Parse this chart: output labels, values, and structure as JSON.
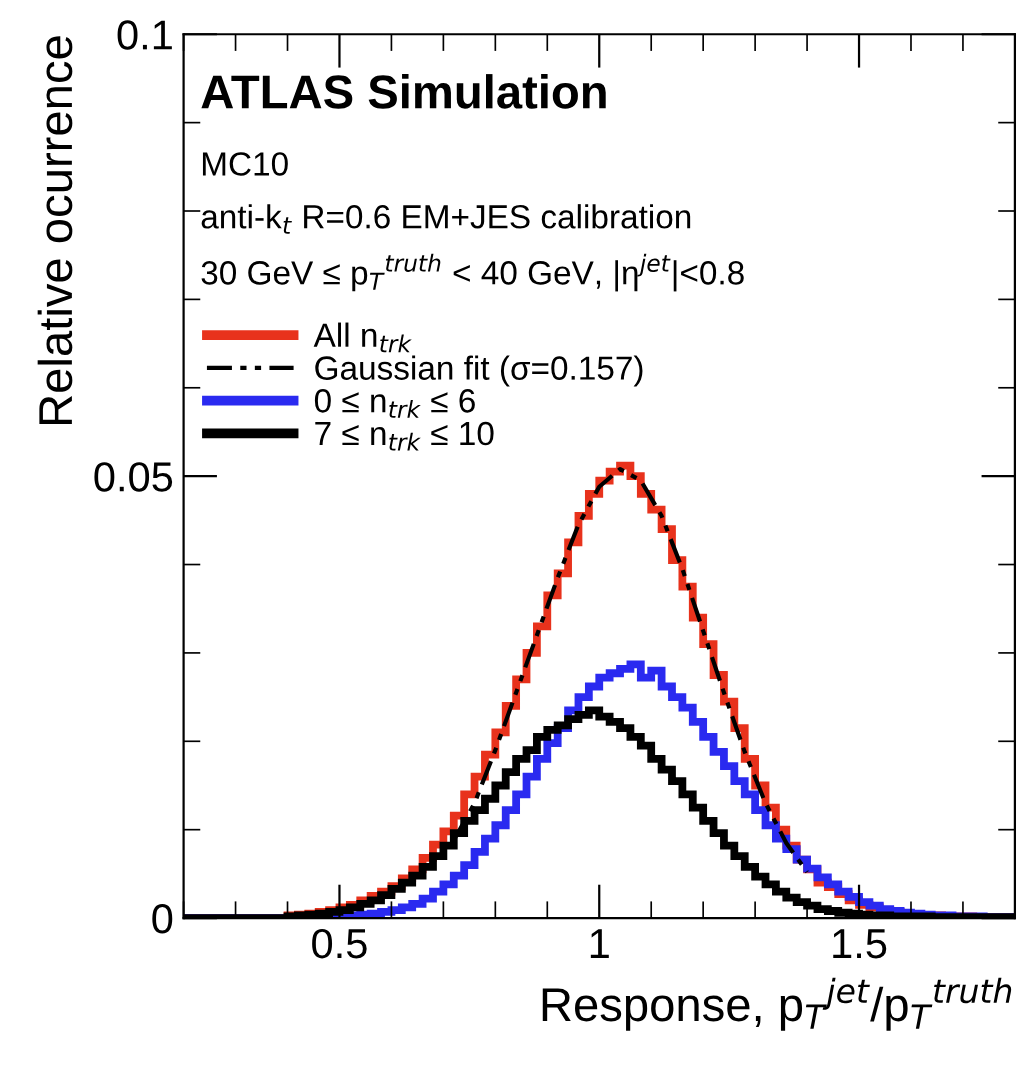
{
  "chart_data": {
    "type": "histogram",
    "xlabel": "Response, p$_{T}$$^{jet}$/p$_{T}$$^{truth}$",
    "ylabel": "Relative ocurrence",
    "annotations": [
      "ATLAS Simulation",
      "MC10",
      "anti-k$_{t}$ R=0.6 EM+JES calibration",
      "30 GeV ≤ p$_{T}$$^{truth}$ < 40 GeV, |η$^{jet}$|<0.8"
    ],
    "bins": [
      0.2,
      0.22,
      0.24,
      0.26,
      0.28,
      0.3,
      0.32,
      0.34,
      0.36,
      0.38,
      0.4,
      0.42,
      0.44,
      0.46,
      0.48,
      0.5,
      0.52,
      0.54,
      0.56,
      0.58,
      0.6,
      0.62,
      0.64,
      0.66,
      0.68,
      0.7,
      0.72,
      0.74,
      0.76,
      0.78,
      0.8,
      0.82,
      0.84,
      0.86,
      0.88,
      0.9,
      0.92,
      0.94,
      0.96,
      0.98,
      1.0,
      1.02,
      1.04,
      1.06,
      1.08,
      1.1,
      1.12,
      1.14,
      1.16,
      1.18,
      1.2,
      1.22,
      1.24,
      1.26,
      1.28,
      1.3,
      1.32,
      1.34,
      1.36,
      1.38,
      1.4,
      1.42,
      1.44,
      1.46,
      1.48,
      1.5,
      1.52,
      1.54,
      1.56,
      1.58,
      1.6,
      1.62,
      1.64,
      1.66,
      1.68,
      1.7,
      1.72,
      1.74,
      1.76,
      1.78,
      1.8
    ],
    "series": [
      {
        "name": "All n$_{trk}$",
        "color": "#e8321c",
        "values": [
          0,
          0,
          0,
          0,
          0,
          0,
          0,
          0,
          0,
          0,
          0.0003,
          0.0004,
          0.0005,
          0.0007,
          0.0009,
          0.0012,
          0.0015,
          0.002,
          0.0025,
          0.003,
          0.0036,
          0.0045,
          0.0055,
          0.0068,
          0.0083,
          0.0098,
          0.0116,
          0.014,
          0.016,
          0.0185,
          0.021,
          0.024,
          0.027,
          0.03,
          0.033,
          0.0365,
          0.039,
          0.0425,
          0.0455,
          0.048,
          0.0495,
          0.0505,
          0.0512,
          0.05,
          0.048,
          0.0462,
          0.044,
          0.0405,
          0.0375,
          0.034,
          0.031,
          0.0275,
          0.0245,
          0.0215,
          0.018,
          0.015,
          0.0125,
          0.01,
          0.0082,
          0.0066,
          0.0055,
          0.004,
          0.0035,
          0.0027,
          0.002,
          0.0015,
          0.0012,
          0.0009,
          0.0007,
          0.0005,
          0.0004,
          0.0003,
          0.0003,
          0.0002,
          0.0002,
          0.0002,
          0.0001,
          0.0001,
          0.0001,
          0.0001
        ]
      },
      {
        "name": "Gaussian fit (σ=0.157)",
        "type": "line",
        "color": "#000000",
        "line_style": "dashed",
        "x": [
          0.72,
          0.76,
          0.8,
          0.84,
          0.88,
          0.92,
          0.96,
          1.0,
          1.04,
          1.08,
          1.12,
          1.16,
          1.2,
          1.24,
          1.28,
          1.32,
          1.36,
          1.4
        ],
        "values": [
          0.0088,
          0.013,
          0.019,
          0.0255,
          0.032,
          0.0385,
          0.0445,
          0.0488,
          0.0508,
          0.0495,
          0.0455,
          0.0395,
          0.0325,
          0.0255,
          0.0188,
          0.013,
          0.0085,
          0.0052
        ]
      },
      {
        "name": "0 ≤ n$_{trk}$ ≤ 6",
        "color": "#2a2af0",
        "values": [
          0,
          0,
          0,
          0,
          0,
          0,
          0,
          0,
          0,
          0,
          0,
          0,
          0,
          0,
          0,
          0.0002,
          0.0003,
          0.0004,
          0.0005,
          0.0007,
          0.0009,
          0.0012,
          0.0016,
          0.0022,
          0.003,
          0.0038,
          0.0048,
          0.006,
          0.0075,
          0.009,
          0.0105,
          0.0122,
          0.014,
          0.016,
          0.018,
          0.0198,
          0.0215,
          0.0235,
          0.025,
          0.0262,
          0.0272,
          0.0277,
          0.0282,
          0.0287,
          0.0272,
          0.028,
          0.0262,
          0.025,
          0.0238,
          0.0222,
          0.0205,
          0.0188,
          0.0172,
          0.0155,
          0.014,
          0.0122,
          0.0105,
          0.009,
          0.0078,
          0.0066,
          0.0056,
          0.0046,
          0.0038,
          0.003,
          0.0024,
          0.0018,
          0.0014,
          0.001,
          0.0008,
          0.0006,
          0.0005,
          0.0004,
          0.0003,
          0.0003,
          0.0002,
          0.0002,
          0.0002,
          0.0001,
          0.0001,
          0.0001
        ]
      },
      {
        "name": "7 ≤ n$_{trk}$ ≤ 10",
        "color": "#000000",
        "values": [
          0,
          0,
          0,
          0,
          0,
          0,
          0,
          0,
          0,
          0,
          0.0002,
          0.0003,
          0.0004,
          0.0005,
          0.0007,
          0.0009,
          0.0012,
          0.0016,
          0.002,
          0.0026,
          0.0033,
          0.004,
          0.0048,
          0.0058,
          0.007,
          0.0082,
          0.0096,
          0.011,
          0.0122,
          0.0135,
          0.015,
          0.0165,
          0.018,
          0.019,
          0.0205,
          0.0213,
          0.0218,
          0.0225,
          0.023,
          0.0235,
          0.0228,
          0.0222,
          0.0215,
          0.0205,
          0.0195,
          0.018,
          0.0168,
          0.0155,
          0.014,
          0.0125,
          0.011,
          0.0096,
          0.0082,
          0.007,
          0.0058,
          0.0047,
          0.0038,
          0.003,
          0.0023,
          0.0018,
          0.0014,
          0.001,
          0.0008,
          0.0006,
          0.0005,
          0.0004,
          0.0003,
          0.0003,
          0.0002,
          0.0002,
          0.0002,
          0.0002,
          0.0001,
          0.0001,
          0.0001,
          0.0001,
          0.0001,
          0.0001,
          0.0001,
          0.0001
        ]
      }
    ],
    "xlim": [
      0.2,
      1.8
    ],
    "xticks": [
      0.5,
      1,
      1.5
    ],
    "ylim": [
      0,
      0.1
    ],
    "yticks": [
      0,
      0.05,
      0.1
    ],
    "grid": false,
    "legend": "top left"
  }
}
